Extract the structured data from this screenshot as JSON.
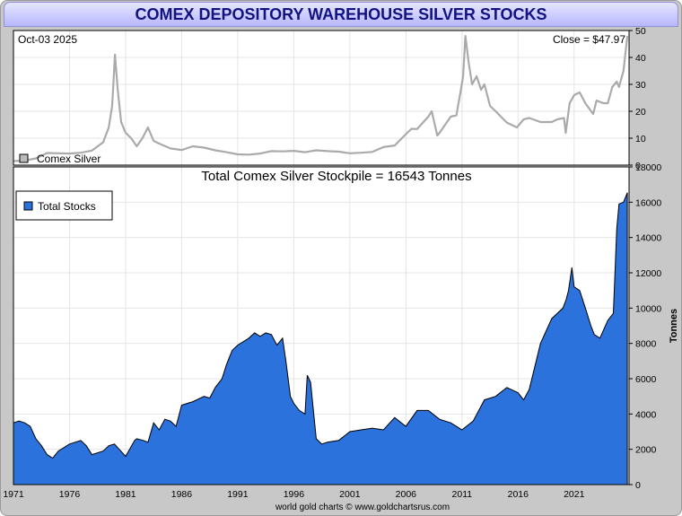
{
  "chart_data": [
    {
      "type": "line",
      "title": "",
      "date_label": "Oct-03  2025",
      "close_label": "Close = $47.97",
      "legend": "Comex Silver",
      "series_color": "#aaaaaa",
      "ylim": [
        0,
        50
      ],
      "yticks": [
        "0",
        "10",
        "20",
        "30",
        "40",
        "50"
      ],
      "x": [
        1971,
        1972,
        1973,
        1974,
        1975,
        1976,
        1977,
        1978,
        1979,
        1979.5,
        1979.8,
        1980.05,
        1980.3,
        1980.6,
        1981,
        1981.5,
        1982,
        1982.5,
        1983,
        1983.5,
        1984,
        1985,
        1986,
        1987,
        1988,
        1989,
        1990,
        1991,
        1992,
        1993,
        1994,
        1995,
        1996,
        1997,
        1998,
        1999,
        2000,
        2001,
        2002,
        2003,
        2004,
        2005,
        2006,
        2006.5,
        2007,
        2008,
        2008.3,
        2008.8,
        2009,
        2010,
        2010.5,
        2010.9,
        2011.1,
        2011.3,
        2011.6,
        2011.9,
        2012.3,
        2012.7,
        2013,
        2013.5,
        2014,
        2015,
        2015.9,
        2016.5,
        2017,
        2018,
        2019,
        2019.5,
        2020.1,
        2020.25,
        2020.6,
        2021,
        2021.5,
        2022,
        2022.7,
        2023,
        2023.6,
        2024,
        2024.4,
        2024.8,
        2025,
        2025.4,
        2025.75
      ],
      "values": [
        1.5,
        1.7,
        2.5,
        4.5,
        4.4,
        4.3,
        4.6,
        5.4,
        8.5,
        14,
        22,
        41,
        28,
        16,
        12,
        10,
        7,
        10,
        14,
        9,
        8,
        6.2,
        5.6,
        7,
        6.5,
        5.5,
        4.8,
        4,
        3.9,
        4.3,
        5.2,
        5.1,
        5.3,
        4.8,
        5.5,
        5.2,
        5,
        4.4,
        4.6,
        4.9,
        6.7,
        7.3,
        11.5,
        13.5,
        13.4,
        18,
        20,
        11,
        12,
        18,
        18.5,
        28,
        33,
        48,
        38,
        30,
        33,
        28,
        30,
        22,
        20,
        15.8,
        14,
        17,
        17.5,
        16,
        16,
        17,
        17.5,
        12,
        23,
        26,
        27,
        23,
        19,
        24,
        23,
        23,
        29,
        31,
        29,
        35,
        47.97
      ]
    },
    {
      "type": "area",
      "title": "Total Comex Silver Stockpile = 16543 Tonnes",
      "legend": "Total Stocks",
      "series_color": "#2b72dd",
      "ylabel": "Tonnes",
      "ylim": [
        0,
        18000
      ],
      "yticks": [
        "0",
        "2000",
        "4000",
        "6000",
        "8000",
        "10000",
        "12000",
        "14000",
        "16000",
        "18000"
      ],
      "xticks": [
        "1971",
        "1976",
        "1981",
        "1986",
        "1991",
        "1996",
        "2001",
        "2006",
        "2011",
        "2016",
        "2021"
      ],
      "xlim": [
        1971,
        2025.9
      ],
      "x": [
        1971,
        1971.5,
        1972,
        1972.5,
        1973,
        1973.5,
        1974,
        1974.5,
        1975,
        1976,
        1977,
        1977.5,
        1978,
        1979,
        1979.5,
        1980,
        1981,
        1981.8,
        1982,
        1982.6,
        1983,
        1983.5,
        1984,
        1984.5,
        1985,
        1985.5,
        1986,
        1986.5,
        1987,
        1988,
        1988.5,
        1989,
        1989.6,
        1990,
        1990.5,
        1991,
        1992,
        1992.5,
        1993,
        1993.5,
        1994,
        1994.5,
        1995,
        1995.3,
        1995.7,
        1996,
        1996.5,
        1997,
        1997.2,
        1997.5,
        1998,
        1998.5,
        1999,
        2000,
        2001,
        2002,
        2003,
        2004,
        2005,
        2006,
        2007,
        2008,
        2009,
        2010,
        2011,
        2012,
        2013,
        2014,
        2015,
        2016,
        2016.5,
        2017,
        2018,
        2019,
        2020,
        2020.3,
        2020.5,
        2020.8,
        2021,
        2021.5,
        2022,
        2022.5,
        2022.8,
        2023.3,
        2024,
        2024.5,
        2024.8,
        2025,
        2025.4,
        2025.75
      ],
      "values": [
        3500,
        3600,
        3500,
        3300,
        2600,
        2200,
        1700,
        1500,
        1900,
        2300,
        2500,
        2200,
        1700,
        1900,
        2200,
        2300,
        1600,
        2500,
        2600,
        2500,
        2400,
        3500,
        3100,
        3700,
        3600,
        3300,
        4500,
        4600,
        4700,
        5000,
        4900,
        5500,
        6000,
        6800,
        7600,
        7900,
        8300,
        8600,
        8400,
        8600,
        8500,
        7900,
        8300,
        7000,
        5000,
        4600,
        4200,
        4000,
        6200,
        5800,
        2600,
        2300,
        2400,
        2500,
        3000,
        3100,
        3200,
        3100,
        3800,
        3300,
        4200,
        4200,
        3700,
        3500,
        3100,
        3600,
        4800,
        5000,
        5500,
        5200,
        4800,
        5400,
        8000,
        9400,
        10000,
        10500,
        11000,
        12300,
        11200,
        11000,
        10000,
        9000,
        8500,
        8300,
        9300,
        9700,
        14500,
        15900,
        16000,
        16543
      ]
    }
  ],
  "footer": "world gold charts © www.goldchartsrus.com",
  "header": {
    "title": "COMEX DEPOSITORY WAREHOUSE SILVER STOCKS"
  }
}
